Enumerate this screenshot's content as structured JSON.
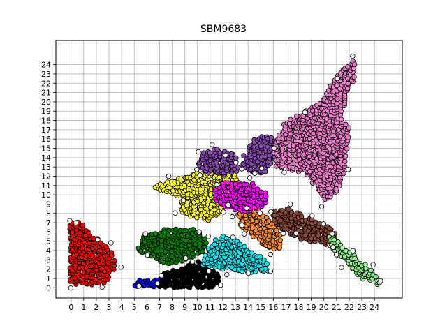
{
  "chart_data": {
    "type": "scatter",
    "title": "SBM9683",
    "xlabel": "",
    "ylabel": "",
    "xlim": [
      -1.2,
      26.2
    ],
    "ylim": [
      -1.1,
      26.6
    ],
    "xticks": [
      0,
      1,
      2,
      3,
      4,
      5,
      6,
      7,
      8,
      9,
      10,
      11,
      12,
      13,
      14,
      15,
      16,
      17,
      18,
      19,
      20,
      21,
      22,
      23,
      24
    ],
    "yticks": [
      0,
      1,
      2,
      3,
      4,
      5,
      6,
      7,
      8,
      9,
      10,
      11,
      12,
      13,
      14,
      15,
      16,
      17,
      18,
      19,
      20,
      21,
      22,
      23,
      24
    ],
    "grid": true,
    "legend": "none",
    "clusters": [
      {
        "color": "#ff0000",
        "polygon": [
          [
            -0.1,
            0.4
          ],
          [
            -0.1,
            6.9
          ],
          [
            0.7,
            7.4
          ],
          [
            1.3,
            6.2
          ],
          [
            2.4,
            5.1
          ],
          [
            3.0,
            4.7
          ],
          [
            3.6,
            2.2
          ],
          [
            3.0,
            1.2
          ],
          [
            2.8,
            0.5
          ],
          [
            1.4,
            0.3
          ]
        ]
      },
      {
        "color": "#0000ff",
        "polygon": [
          [
            5.0,
            0.1
          ],
          [
            5.0,
            0.9
          ],
          [
            6.0,
            0.8
          ],
          [
            7.8,
            1.0
          ],
          [
            7.8,
            0.1
          ]
        ]
      },
      {
        "color": "#000000",
        "polygon": [
          [
            6.8,
            0.1
          ],
          [
            7.2,
            1.6
          ],
          [
            8.8,
            2.1
          ],
          [
            9.3,
            2.6
          ],
          [
            10.4,
            2.9
          ],
          [
            11.0,
            2.0
          ],
          [
            11.9,
            1.2
          ],
          [
            11.6,
            0.1
          ],
          [
            9.9,
            0.0
          ],
          [
            8.0,
            0.0
          ]
        ]
      },
      {
        "color": "#008000",
        "polygon": [
          [
            5.1,
            4.3
          ],
          [
            5.8,
            5.6
          ],
          [
            7.5,
            6.4
          ],
          [
            9.8,
            6.3
          ],
          [
            10.8,
            5.4
          ],
          [
            10.6,
            3.8
          ],
          [
            9.4,
            3.1
          ],
          [
            7.6,
            2.4
          ],
          [
            5.8,
            3.6
          ]
        ]
      },
      {
        "color": "#00e5ee",
        "polygon": [
          [
            10.1,
            2.4
          ],
          [
            10.8,
            4.3
          ],
          [
            11.8,
            5.6
          ],
          [
            13.1,
            5.2
          ],
          [
            14.2,
            3.8
          ],
          [
            15.4,
            3.3
          ],
          [
            15.6,
            1.8
          ],
          [
            14.3,
            1.5
          ],
          [
            12.9,
            1.9
          ],
          [
            11.4,
            2.1
          ]
        ]
      },
      {
        "color": "#ff8c2a",
        "polygon": [
          [
            13.2,
            7.9
          ],
          [
            14.6,
            8.6
          ],
          [
            15.9,
            7.1
          ],
          [
            16.7,
            5.5
          ],
          [
            16.6,
            4.2
          ],
          [
            15.8,
            4.0
          ],
          [
            14.9,
            4.9
          ],
          [
            13.8,
            6.2
          ],
          [
            13.1,
            6.8
          ]
        ]
      },
      {
        "color": "#ffff1a",
        "polygon": [
          [
            6.3,
            10.9
          ],
          [
            8.0,
            11.6
          ],
          [
            10.1,
            12.4
          ],
          [
            12.0,
            13.3
          ],
          [
            13.1,
            13.4
          ],
          [
            13.1,
            11.2
          ],
          [
            12.6,
            9.5
          ],
          [
            12.1,
            8.2
          ],
          [
            11.1,
            7.1
          ],
          [
            9.9,
            7.4
          ],
          [
            8.6,
            8.2
          ],
          [
            8.8,
            9.6
          ],
          [
            7.5,
            10.3
          ]
        ]
      },
      {
        "color": "#ff00ff",
        "polygon": [
          [
            11.3,
            10.8
          ],
          [
            12.1,
            11.4
          ],
          [
            14.2,
            11.4
          ],
          [
            15.6,
            10.2
          ],
          [
            15.6,
            9.2
          ],
          [
            14.6,
            8.3
          ],
          [
            13.5,
            8.2
          ],
          [
            12.1,
            8.6
          ],
          [
            11.3,
            9.6
          ]
        ]
      },
      {
        "color": "#8c4ab5",
        "polygon": [
          [
            10.0,
            13.3
          ],
          [
            10.5,
            14.6
          ],
          [
            11.6,
            15.0
          ],
          [
            12.6,
            14.6
          ],
          [
            13.3,
            13.7
          ],
          [
            13.2,
            12.5
          ],
          [
            12.1,
            12.1
          ],
          [
            10.6,
            12.4
          ]
        ]
      },
      {
        "color": "#8c4ab5",
        "polygon": [
          [
            13.6,
            14.1
          ],
          [
            14.1,
            15.7
          ],
          [
            15.3,
            16.5
          ],
          [
            16.2,
            16.1
          ],
          [
            16.1,
            13.9
          ],
          [
            15.4,
            12.4
          ],
          [
            14.4,
            12.3
          ],
          [
            13.5,
            13.1
          ]
        ]
      },
      {
        "color": "#8b4a3c",
        "polygon": [
          [
            15.9,
            8.2
          ],
          [
            17.2,
            8.6
          ],
          [
            18.7,
            7.6
          ],
          [
            20.4,
            6.5
          ],
          [
            21.1,
            5.5
          ],
          [
            20.3,
            4.6
          ],
          [
            18.4,
            5.0
          ],
          [
            17.4,
            5.7
          ],
          [
            16.2,
            6.8
          ]
        ]
      },
      {
        "color": "#ee7ecb",
        "polygon": [
          [
            16.0,
            14.6
          ],
          [
            16.8,
            17.9
          ],
          [
            18.4,
            18.9
          ],
          [
            19.9,
            20.1
          ],
          [
            20.8,
            22.5
          ],
          [
            22.4,
            24.6
          ],
          [
            22.5,
            22.9
          ],
          [
            21.3,
            18.3
          ],
          [
            22.1,
            17.0
          ],
          [
            21.6,
            12.3
          ],
          [
            21.1,
            10.5
          ],
          [
            20.2,
            9.1
          ],
          [
            18.6,
            12.2
          ],
          [
            17.3,
            12.7
          ],
          [
            16.2,
            13.1
          ]
        ]
      },
      {
        "color": "#90ee90",
        "polygon": [
          [
            20.4,
            5.6
          ],
          [
            21.1,
            5.1
          ],
          [
            22.3,
            3.7
          ],
          [
            23.6,
            2.1
          ],
          [
            24.7,
            0.5
          ],
          [
            24.3,
            0.3
          ],
          [
            22.8,
            1.1
          ],
          [
            21.8,
            2.6
          ],
          [
            20.9,
            3.9
          ],
          [
            20.4,
            4.6
          ]
        ]
      }
    ]
  }
}
